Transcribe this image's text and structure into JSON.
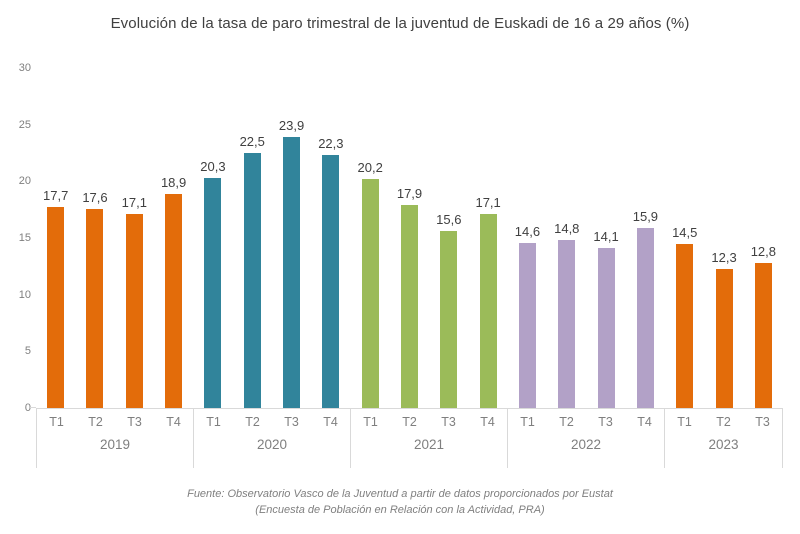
{
  "title": "Evolución de la tasa de paro trimestral de la juventud de Euskadi de 16 a 29 años (%)",
  "chart_data": {
    "type": "bar",
    "title": "Evolución de la tasa de paro trimestral de la juventud de Euskadi de 16 a 29 años (%)",
    "xlabel": "",
    "ylabel": "",
    "ylim": [
      0,
      30
    ],
    "yticks": [
      0,
      5,
      10,
      15,
      20,
      25,
      30
    ],
    "grid": false,
    "decimal_separator": ",",
    "legend": "none",
    "groups": [
      {
        "year": "2019",
        "color": "#E36C0A",
        "quarters": [
          "T1",
          "T2",
          "T3",
          "T4"
        ],
        "values": [
          17.7,
          17.6,
          17.1,
          18.9
        ]
      },
      {
        "year": "2020",
        "color": "#31849B",
        "quarters": [
          "T1",
          "T2",
          "T3",
          "T4"
        ],
        "values": [
          20.3,
          22.5,
          23.9,
          22.3
        ]
      },
      {
        "year": "2021",
        "color": "#9BBB59",
        "quarters": [
          "T1",
          "T2",
          "T3",
          "T4"
        ],
        "values": [
          20.2,
          17.9,
          15.6,
          17.1
        ]
      },
      {
        "year": "2022",
        "color": "#B2A1C7",
        "quarters": [
          "T1",
          "T2",
          "T3",
          "T4"
        ],
        "values": [
          14.6,
          14.8,
          14.1,
          15.9
        ]
      },
      {
        "year": "2023",
        "color": "#E36C0A",
        "quarters": [
          "T1",
          "T2",
          "T3"
        ],
        "values": [
          14.5,
          12.3,
          12.8
        ]
      }
    ]
  },
  "source": {
    "line1": "Fuente: Observatorio Vasco de la Juventud a partir de datos proporcionados por Eustat",
    "line2": "(Encuesta de Población en Relación con la Actividad, PRA)"
  },
  "colors": {
    "bar_orange": "#E36C0A",
    "bar_teal": "#31849B",
    "bar_green": "#9BBB59",
    "bar_purple": "#B2A1C7",
    "axis_line": "#D9D9D9",
    "axis_text": "#7F7F7F",
    "data_label_text": "#404040"
  }
}
